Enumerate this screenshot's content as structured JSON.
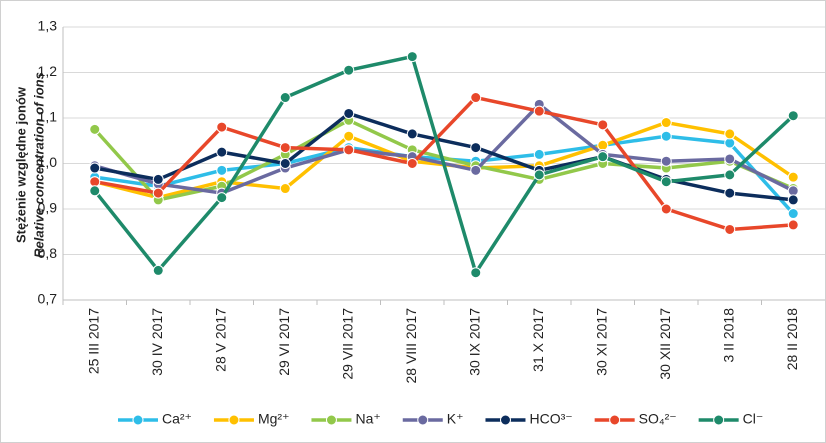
{
  "chart_data": {
    "type": "line",
    "y_label": "Stężenie względne jonów",
    "y_label_2": "Relative concentration of ions",
    "categories": [
      "25 III 2017",
      "30 IV 2017",
      "28 V 2017",
      "29 VI 2017",
      "29 VII 2017",
      "28 VIII 2017",
      "30 IX 2017",
      "31 X 2017",
      "30 XI 2017",
      "30 XII 2017",
      "3 II 2018",
      "28 II 2018"
    ],
    "ylim": [
      0.7,
      1.3
    ],
    "yticks": [
      {
        "value": 0.7,
        "label": "0,7"
      },
      {
        "value": 0.8,
        "label": "0,8"
      },
      {
        "value": 0.9,
        "label": "0,9"
      },
      {
        "value": 1.0,
        "label": "1,0"
      },
      {
        "value": 1.1,
        "label": "1,1"
      },
      {
        "value": 1.2,
        "label": "1,2"
      },
      {
        "value": 1.3,
        "label": "1,3"
      }
    ],
    "grid": true,
    "series": [
      {
        "name": "Ca²⁺",
        "color": "#2ebde8",
        "values": [
          0.97,
          0.95,
          0.985,
          1.0,
          1.035,
          1.015,
          1.005,
          1.02,
          1.04,
          1.06,
          1.045,
          0.89
        ]
      },
      {
        "name": "Mg²⁺",
        "color": "#ffc000",
        "values": [
          0.96,
          0.925,
          0.96,
          0.945,
          1.06,
          1.005,
          0.99,
          0.995,
          1.04,
          1.09,
          1.065,
          0.97
        ]
      },
      {
        "name": "Na⁺",
        "color": "#92c84a",
        "values": [
          1.075,
          0.92,
          0.95,
          1.02,
          1.095,
          1.03,
          0.995,
          0.965,
          1.0,
          0.99,
          1.005,
          0.945
        ]
      },
      {
        "name": "K⁺",
        "color": "#6a6aa0",
        "values": [
          0.995,
          0.955,
          0.935,
          0.99,
          1.03,
          1.015,
          0.985,
          1.13,
          1.02,
          1.005,
          1.01,
          0.94
        ]
      },
      {
        "name": "HCO³⁻",
        "color": "#0c2d5c",
        "values": [
          0.99,
          0.965,
          1.025,
          1.0,
          1.11,
          1.065,
          1.035,
          0.985,
          1.015,
          0.965,
          0.935,
          0.92
        ]
      },
      {
        "name": "SO₄²⁻",
        "color": "#e8472a",
        "values": [
          0.96,
          0.935,
          1.08,
          1.035,
          1.03,
          1.0,
          1.145,
          1.115,
          1.085,
          0.9,
          0.855,
          0.865
        ]
      },
      {
        "name": "Cl⁻",
        "color": "#1e8a6a",
        "values": [
          0.94,
          0.765,
          0.925,
          1.145,
          1.205,
          1.235,
          0.76,
          0.975,
          1.015,
          0.96,
          0.975,
          1.105
        ]
      }
    ]
  }
}
